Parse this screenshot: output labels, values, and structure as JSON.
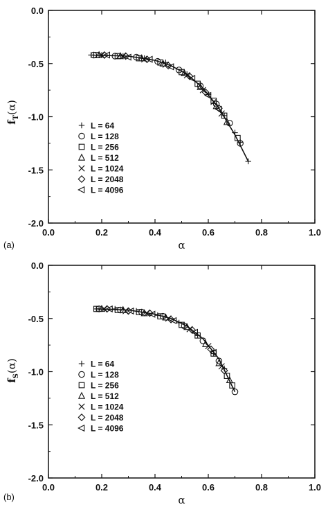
{
  "chart_data": [
    {
      "type": "scatter",
      "panel_label": "(a)",
      "xlabel": "α",
      "ylabel": {
        "main": "f",
        "sub": "T",
        "arg": "(α)"
      },
      "xlim": [
        0.0,
        1.0
      ],
      "ylim": [
        -2.0,
        0.0
      ],
      "x_ticks": [
        "0.0",
        "0.2",
        "0.4",
        "0.6",
        "0.8",
        "1.0"
      ],
      "y_ticks": [
        "0.0",
        "-0.5",
        "-1.0",
        "-1.5",
        "-2.0"
      ],
      "grid": false,
      "legend_position": "left-middle",
      "series": [
        {
          "name": "L =   64",
          "marker": "plus",
          "points": [
            [
              0.16,
              -0.42
            ],
            [
              0.2,
              -0.42
            ],
            [
              0.28,
              -0.43
            ],
            [
              0.36,
              -0.45
            ],
            [
              0.44,
              -0.49
            ],
            [
              0.52,
              -0.6
            ],
            [
              0.6,
              -0.79
            ],
            [
              0.66,
              -0.99
            ],
            [
              0.7,
              -1.15
            ],
            [
              0.72,
              -1.24
            ],
            [
              0.75,
              -1.42
            ]
          ]
        },
        {
          "name": "L = 128",
          "marker": "circle",
          "points": [
            [
              0.17,
              -0.42
            ],
            [
              0.25,
              -0.43
            ],
            [
              0.33,
              -0.44
            ],
            [
              0.41,
              -0.48
            ],
            [
              0.49,
              -0.56
            ],
            [
              0.57,
              -0.71
            ],
            [
              0.63,
              -0.88
            ],
            [
              0.68,
              -1.06
            ],
            [
              0.72,
              -1.25
            ]
          ]
        },
        {
          "name": "L = 256",
          "marker": "square",
          "points": [
            [
              0.18,
              -0.42
            ],
            [
              0.26,
              -0.43
            ],
            [
              0.34,
              -0.45
            ],
            [
              0.42,
              -0.49
            ],
            [
              0.5,
              -0.58
            ],
            [
              0.56,
              -0.69
            ],
            [
              0.62,
              -0.85
            ],
            [
              0.66,
              -0.99
            ],
            [
              0.71,
              -1.2
            ]
          ]
        },
        {
          "name": "L = 512",
          "marker": "triangle-up",
          "points": [
            [
              0.19,
              -0.42
            ],
            [
              0.27,
              -0.43
            ],
            [
              0.35,
              -0.45
            ],
            [
              0.43,
              -0.5
            ],
            [
              0.51,
              -0.59
            ],
            [
              0.57,
              -0.72
            ],
            [
              0.63,
              -0.9
            ],
            [
              0.67,
              -1.05
            ]
          ]
        },
        {
          "name": "L = 1024",
          "marker": "cross",
          "points": [
            [
              0.2,
              -0.42
            ],
            [
              0.28,
              -0.43
            ],
            [
              0.36,
              -0.46
            ],
            [
              0.44,
              -0.51
            ],
            [
              0.52,
              -0.61
            ],
            [
              0.58,
              -0.75
            ],
            [
              0.62,
              -0.86
            ],
            [
              0.65,
              -0.97
            ]
          ]
        },
        {
          "name": "L = 2048",
          "marker": "diamond",
          "points": [
            [
              0.21,
              -0.42
            ],
            [
              0.29,
              -0.43
            ],
            [
              0.37,
              -0.46
            ],
            [
              0.45,
              -0.52
            ],
            [
              0.53,
              -0.62
            ],
            [
              0.59,
              -0.77
            ],
            [
              0.64,
              -0.92
            ]
          ]
        },
        {
          "name": "L = 4096",
          "marker": "triangle-left",
          "points": [
            [
              0.22,
              -0.42
            ],
            [
              0.3,
              -0.44
            ],
            [
              0.38,
              -0.46
            ],
            [
              0.46,
              -0.53
            ],
            [
              0.54,
              -0.64
            ],
            [
              0.6,
              -0.8
            ],
            [
              0.64,
              -0.93
            ]
          ]
        }
      ],
      "fit_curve": [
        [
          0.16,
          -0.42
        ],
        [
          0.3,
          -0.43
        ],
        [
          0.4,
          -0.47
        ],
        [
          0.46,
          -0.52
        ],
        [
          0.52,
          -0.6
        ],
        [
          0.58,
          -0.73
        ],
        [
          0.64,
          -0.92
        ],
        [
          0.7,
          -1.17
        ],
        [
          0.75,
          -1.42
        ]
      ]
    },
    {
      "type": "scatter",
      "panel_label": "(b)",
      "xlabel": "α",
      "ylabel": {
        "main": "f",
        "sub": "S",
        "arg": "(α)"
      },
      "xlim": [
        0.0,
        1.0
      ],
      "ylim": [
        -2.0,
        0.0
      ],
      "x_ticks": [
        "0.0",
        "0.2",
        "0.4",
        "0.6",
        "0.8",
        "1.0"
      ],
      "y_ticks": [
        "0.0",
        "-0.5",
        "-1.0",
        "-1.5",
        "-2.0"
      ],
      "grid": false,
      "legend_position": "left-middle",
      "series": [
        {
          "name": "L =   64",
          "marker": "plus",
          "points": [
            [
              0.18,
              -0.41
            ],
            [
              0.25,
              -0.41
            ],
            [
              0.33,
              -0.43
            ],
            [
              0.41,
              -0.47
            ],
            [
              0.49,
              -0.54
            ],
            [
              0.56,
              -0.66
            ],
            [
              0.62,
              -0.83
            ],
            [
              0.66,
              -0.97
            ]
          ]
        },
        {
          "name": "L =  128",
          "marker": "circle",
          "points": [
            [
              0.19,
              -0.41
            ],
            [
              0.27,
              -0.42
            ],
            [
              0.35,
              -0.44
            ],
            [
              0.43,
              -0.48
            ],
            [
              0.51,
              -0.57
            ],
            [
              0.58,
              -0.71
            ],
            [
              0.64,
              -0.9
            ],
            [
              0.7,
              -1.19
            ]
          ]
        },
        {
          "name": "L =   256",
          "marker": "square",
          "points": [
            [
              0.18,
              -0.41
            ],
            [
              0.26,
              -0.42
            ],
            [
              0.34,
              -0.44
            ],
            [
              0.42,
              -0.48
            ],
            [
              0.5,
              -0.56
            ],
            [
              0.56,
              -0.66
            ],
            [
              0.62,
              -0.83
            ],
            [
              0.67,
              -1.04
            ],
            [
              0.69,
              -1.13
            ]
          ]
        },
        {
          "name": "L =   512",
          "marker": "triangle-up",
          "points": [
            [
              0.2,
              -0.41
            ],
            [
              0.28,
              -0.42
            ],
            [
              0.36,
              -0.45
            ],
            [
              0.44,
              -0.49
            ],
            [
              0.52,
              -0.58
            ],
            [
              0.59,
              -0.74
            ],
            [
              0.64,
              -0.92
            ],
            [
              0.68,
              -1.08
            ]
          ]
        },
        {
          "name": "L = 1024",
          "marker": "cross",
          "points": [
            [
              0.21,
              -0.41
            ],
            [
              0.29,
              -0.43
            ],
            [
              0.37,
              -0.45
            ],
            [
              0.45,
              -0.5
            ],
            [
              0.53,
              -0.6
            ],
            [
              0.6,
              -0.76
            ],
            [
              0.65,
              -0.95
            ]
          ]
        },
        {
          "name": "L = 2048",
          "marker": "diamond",
          "points": [
            [
              0.22,
              -0.41
            ],
            [
              0.3,
              -0.43
            ],
            [
              0.38,
              -0.45
            ],
            [
              0.46,
              -0.51
            ],
            [
              0.54,
              -0.61
            ],
            [
              0.61,
              -0.79
            ],
            [
              0.66,
              -0.99
            ]
          ]
        },
        {
          "name": "L = 4096",
          "marker": "triangle-left",
          "points": [
            [
              0.23,
              -0.41
            ],
            [
              0.31,
              -0.43
            ],
            [
              0.39,
              -0.46
            ],
            [
              0.47,
              -0.52
            ],
            [
              0.55,
              -0.63
            ],
            [
              0.62,
              -0.82
            ]
          ]
        }
      ],
      "fit_curve": [
        [
          0.18,
          -0.41
        ],
        [
          0.3,
          -0.42
        ],
        [
          0.4,
          -0.46
        ],
        [
          0.46,
          -0.5
        ],
        [
          0.52,
          -0.57
        ],
        [
          0.58,
          -0.69
        ],
        [
          0.64,
          -0.88
        ],
        [
          0.7,
          -1.19
        ]
      ]
    }
  ]
}
